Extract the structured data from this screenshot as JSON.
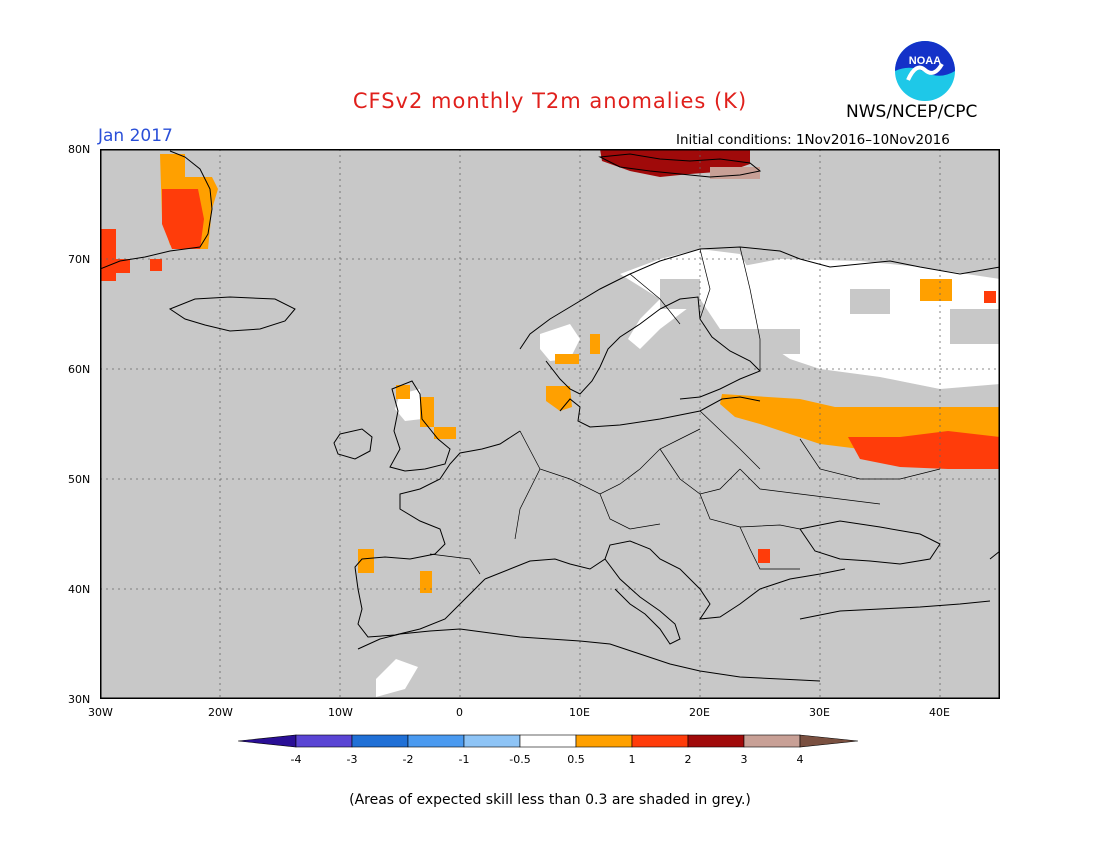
{
  "header": {
    "title": "CFSv2 monthly T2m anomalies (K)",
    "agency": "NWS/NCEP/CPC",
    "valid_month": "Jan 2017",
    "initial_conditions": "Initial conditions: 1Nov2016–10Nov2016",
    "logo_text": "NOAA"
  },
  "map": {
    "lat_labels": [
      "80N",
      "70N",
      "60N",
      "50N",
      "40N",
      "30N"
    ],
    "lon_labels": [
      "30W",
      "20W",
      "10W",
      "0",
      "10E",
      "20E",
      "30E",
      "40E"
    ],
    "background_color": "#c8c8c8"
  },
  "legend": {
    "bin_labels": [
      "-4",
      "-3",
      "-2",
      "-1",
      "-0.5",
      "0.5",
      "1",
      "2",
      "3",
      "4"
    ],
    "colors": [
      "#2a0f96",
      "#5a45d4",
      "#2070d6",
      "#4a9af0",
      "#8ec4f6",
      "#ffffff",
      "#ffa000",
      "#ff3c0a",
      "#a00a0a",
      "#c8a096",
      "#7a5040"
    ]
  },
  "footer": {
    "skill_note": "(Areas of expected skill less than 0.3 are shaded in grey.)"
  }
}
